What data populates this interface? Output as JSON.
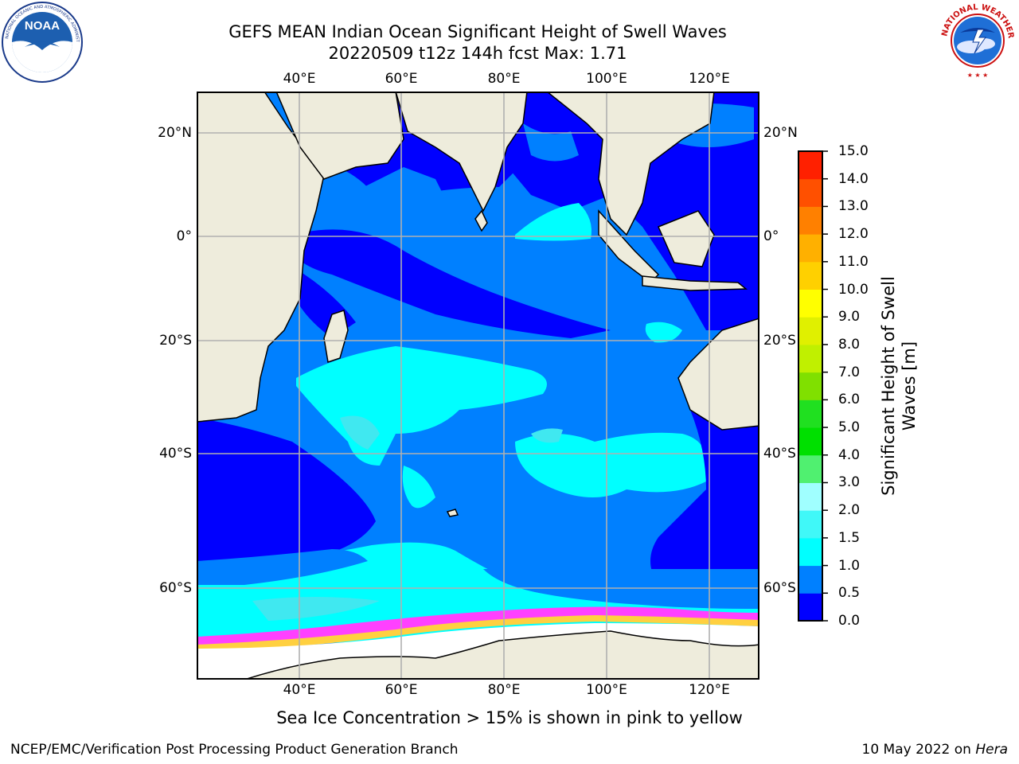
{
  "title_line1": "GEFS MEAN Indian Ocean Significant Height of Swell Waves",
  "title_line2": "20220509 t12z 144h fcst   Max: 1.71",
  "logos": {
    "left": {
      "icon": "noaa-logo",
      "text": "NOAA",
      "ring_text": "NATIONAL OCEANIC AND ATMOSPHERIC ADMINISTRATION · U.S. DEPARTMENT OF COMMERCE"
    },
    "right": {
      "icon": "nws-logo",
      "ring_text": "NATIONAL WEATHER SERVICE"
    }
  },
  "map": {
    "lon_ticks_top": [
      "40°E",
      "60°E",
      "80°E",
      "100°E",
      "120°E"
    ],
    "lon_ticks_bottom": [
      "40°E",
      "60°E",
      "80°E",
      "100°E",
      "120°E"
    ],
    "lat_ticks_left": [
      "20°N",
      "0°",
      "20°S",
      "40°S",
      "60°S"
    ],
    "lat_ticks_right": [
      "20°N",
      "0°",
      "20°S",
      "40°S",
      "60°S"
    ],
    "colors": {
      "land": "#eeecdc",
      "swell_0_0.5": "#0000ff",
      "swell_0.5_1.0": "#0080ff",
      "swell_1.0_1.5": "#00ffff",
      "swell_1.5_2.0": "#40e8f0",
      "sea_ice_pink": "#ff40ff",
      "sea_ice_yellow": "#ffd040",
      "ice_shelf": "#ffffff"
    }
  },
  "colorbar": {
    "label": "Significant Height of Swell Waves [m]",
    "label_line1": "Significant Height of Swell",
    "label_line2": "Waves [m]",
    "ticks": [
      "0.0",
      "0.5",
      "1.0",
      "1.5",
      "2.0",
      "3.0",
      "4.0",
      "5.0",
      "6.0",
      "7.0",
      "8.0",
      "9.0",
      "10.0",
      "11.0",
      "12.0",
      "13.0",
      "14.0",
      "15.0"
    ],
    "colors": [
      "#0000ff",
      "#0080ff",
      "#00ffff",
      "#40f8f8",
      "#a0ffff",
      "#50f070",
      "#00e000",
      "#20e020",
      "#80e000",
      "#c0f000",
      "#e0f000",
      "#ffff00",
      "#ffd000",
      "#ffb000",
      "#ff8000",
      "#ff5000",
      "#ff2000",
      "#ff0000"
    ]
  },
  "caption": "Sea Ice Concentration > 15% is shown in pink to yellow",
  "footer_left": "NCEP/EMC/Verification Post Processing Product Generation Branch",
  "footer_right_prefix": "10 May 2022 on ",
  "footer_right_host": "Hera"
}
